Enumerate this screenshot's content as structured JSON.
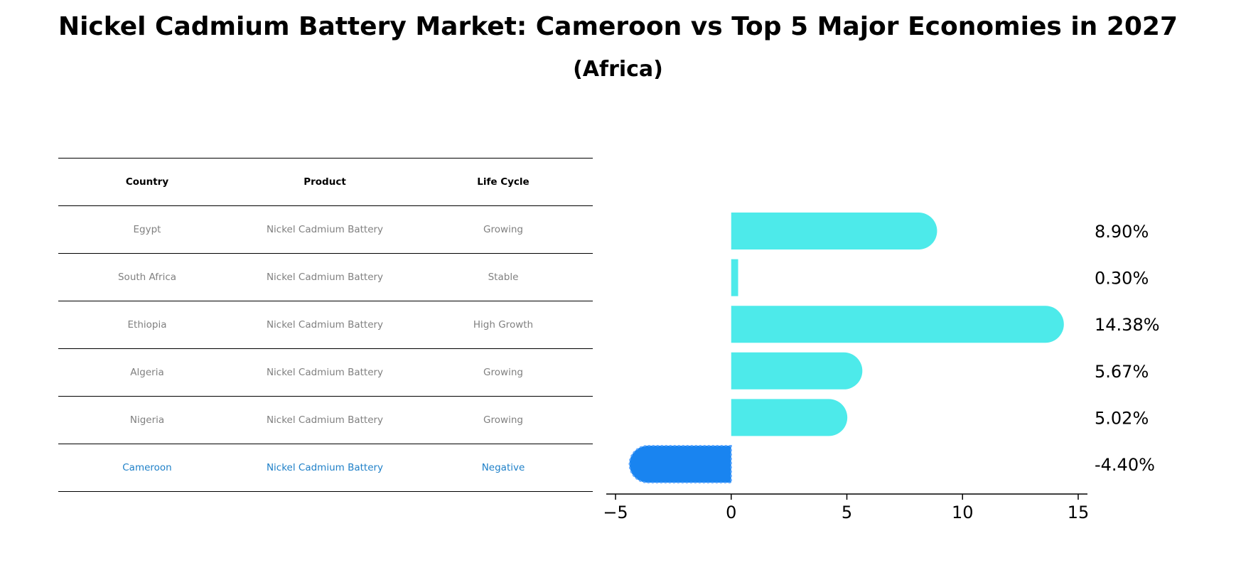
{
  "title": "Nickel Cadmium Battery Market: Cameroon vs Top 5 Major Economies in 2027",
  "subtitle": "(Africa)",
  "colors": {
    "bar": "#4deaea",
    "highlight_bar": "#1984f0",
    "highlight_text": "#1f80c8",
    "muted_text": "#808080"
  },
  "table": {
    "headers": [
      "Country",
      "Product",
      "Life Cycle"
    ],
    "rows": [
      {
        "country": "Egypt",
        "product": "Nickel Cadmium Battery",
        "life_cycle": "Growing"
      },
      {
        "country": "South Africa",
        "product": "Nickel Cadmium Battery",
        "life_cycle": "Stable"
      },
      {
        "country": "Ethiopia",
        "product": "Nickel Cadmium Battery",
        "life_cycle": "High Growth"
      },
      {
        "country": "Algeria",
        "product": "Nickel Cadmium Battery",
        "life_cycle": "Growing"
      },
      {
        "country": "Nigeria",
        "product": "Nickel Cadmium Battery",
        "life_cycle": "Growing"
      },
      {
        "country": "Cameroon",
        "product": "Nickel Cadmium Battery",
        "life_cycle": "Negative",
        "highlight": true
      }
    ]
  },
  "chart_data": {
    "type": "bar",
    "orientation": "horizontal",
    "categories": [
      "Egypt",
      "South Africa",
      "Ethiopia",
      "Algeria",
      "Nigeria",
      "Cameroon"
    ],
    "values": [
      8.9,
      0.3,
      14.38,
      5.67,
      5.02,
      -4.4
    ],
    "value_labels": [
      "8.90%",
      "0.30%",
      "14.38%",
      "5.67%",
      "5.02%",
      "-4.40%"
    ],
    "highlight_category": "Cameroon",
    "xlim": [
      -5.4,
      15.4
    ],
    "xticks": [
      -5,
      0,
      5,
      10,
      15
    ],
    "xtick_labels": [
      "−5",
      "0",
      "5",
      "10",
      "15"
    ],
    "xlabel": "",
    "ylabel": "",
    "grid": false
  }
}
